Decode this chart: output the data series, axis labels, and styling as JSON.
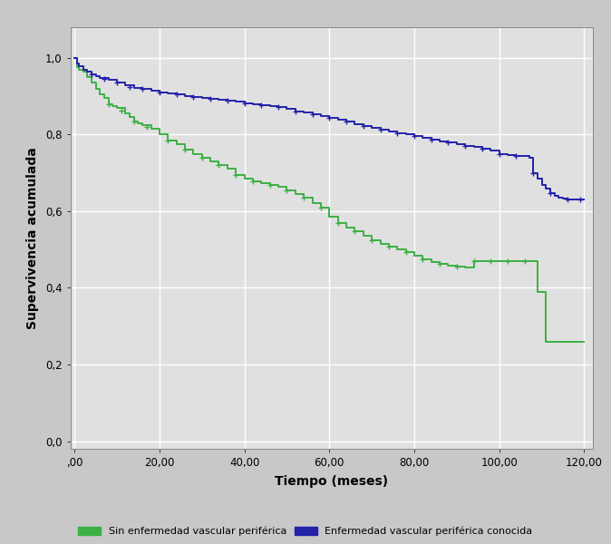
{
  "title": "",
  "xlabel": "Tiempo (meses)",
  "ylabel": "Supervivencia acumulada",
  "xlim": [
    -1,
    122
  ],
  "ylim": [
    -0.02,
    1.08
  ],
  "xticks": [
    0,
    20,
    40,
    60,
    80,
    100,
    120
  ],
  "xtick_labels": [
    ",00",
    "20,00",
    "40,00",
    "60,00",
    "80,00",
    "100,00",
    "120,00"
  ],
  "yticks": [
    0.0,
    0.2,
    0.4,
    0.6,
    0.8,
    1.0
  ],
  "ytick_labels": [
    "0,0",
    "0,2",
    "0,4",
    "0,6",
    "0,8",
    "1,0"
  ],
  "fig_bg_color": "#c8c8c8",
  "plot_bg_color": "#e0e0e0",
  "grid_color": "#ffffff",
  "green_color": "#3cb043",
  "blue_color": "#2222aa",
  "legend_green": "Sin enfermedad vascular periférica",
  "legend_blue": "Enfermedad vascular periférica conocida",
  "green_steps": [
    [
      0.0,
      1.0
    ],
    [
      0.5,
      0.975
    ],
    [
      1.0,
      0.97
    ],
    [
      2.0,
      0.965
    ],
    [
      3.0,
      0.95
    ],
    [
      4.0,
      0.935
    ],
    [
      5.0,
      0.92
    ],
    [
      6.0,
      0.905
    ],
    [
      7.0,
      0.895
    ],
    [
      8.0,
      0.88
    ],
    [
      9.0,
      0.875
    ],
    [
      10.0,
      0.87
    ],
    [
      12.0,
      0.855
    ],
    [
      13.0,
      0.845
    ],
    [
      14.0,
      0.835
    ],
    [
      15.0,
      0.83
    ],
    [
      16.0,
      0.825
    ],
    [
      18.0,
      0.815
    ],
    [
      20.0,
      0.8
    ],
    [
      22.0,
      0.785
    ],
    [
      24.0,
      0.775
    ],
    [
      26.0,
      0.76
    ],
    [
      28.0,
      0.75
    ],
    [
      30.0,
      0.74
    ],
    [
      32.0,
      0.73
    ],
    [
      34.0,
      0.72
    ],
    [
      36.0,
      0.71
    ],
    [
      38.0,
      0.695
    ],
    [
      40.0,
      0.685
    ],
    [
      42.0,
      0.678
    ],
    [
      44.0,
      0.672
    ],
    [
      46.0,
      0.668
    ],
    [
      48.0,
      0.663
    ],
    [
      50.0,
      0.655
    ],
    [
      52.0,
      0.645
    ],
    [
      54.0,
      0.635
    ],
    [
      56.0,
      0.62
    ],
    [
      58.0,
      0.61
    ],
    [
      60.0,
      0.585
    ],
    [
      62.0,
      0.57
    ],
    [
      64.0,
      0.558
    ],
    [
      66.0,
      0.548
    ],
    [
      68.0,
      0.535
    ],
    [
      70.0,
      0.523
    ],
    [
      72.0,
      0.515
    ],
    [
      74.0,
      0.508
    ],
    [
      76.0,
      0.5
    ],
    [
      78.0,
      0.493
    ],
    [
      80.0,
      0.485
    ],
    [
      82.0,
      0.475
    ],
    [
      84.0,
      0.468
    ],
    [
      86.0,
      0.463
    ],
    [
      88.0,
      0.458
    ],
    [
      90.0,
      0.455
    ],
    [
      92.0,
      0.452
    ],
    [
      94.0,
      0.47
    ],
    [
      96.0,
      0.47
    ],
    [
      98.0,
      0.47
    ],
    [
      100.0,
      0.47
    ],
    [
      102.0,
      0.47
    ],
    [
      104.0,
      0.47
    ],
    [
      106.0,
      0.47
    ],
    [
      108.0,
      0.47
    ],
    [
      109.0,
      0.39
    ],
    [
      110.0,
      0.39
    ],
    [
      111.0,
      0.26
    ],
    [
      120.0,
      0.26
    ]
  ],
  "blue_steps": [
    [
      0.0,
      1.0
    ],
    [
      0.5,
      0.985
    ],
    [
      1.0,
      0.978
    ],
    [
      2.0,
      0.97
    ],
    [
      3.0,
      0.963
    ],
    [
      4.0,
      0.957
    ],
    [
      5.0,
      0.952
    ],
    [
      6.0,
      0.948
    ],
    [
      8.0,
      0.942
    ],
    [
      10.0,
      0.936
    ],
    [
      12.0,
      0.928
    ],
    [
      14.0,
      0.922
    ],
    [
      16.0,
      0.918
    ],
    [
      18.0,
      0.914
    ],
    [
      20.0,
      0.91
    ],
    [
      22.0,
      0.907
    ],
    [
      24.0,
      0.904
    ],
    [
      26.0,
      0.901
    ],
    [
      28.0,
      0.899
    ],
    [
      30.0,
      0.896
    ],
    [
      32.0,
      0.893
    ],
    [
      34.0,
      0.891
    ],
    [
      36.0,
      0.888
    ],
    [
      38.0,
      0.885
    ],
    [
      40.0,
      0.882
    ],
    [
      42.0,
      0.88
    ],
    [
      44.0,
      0.877
    ],
    [
      46.0,
      0.874
    ],
    [
      48.0,
      0.871
    ],
    [
      50.0,
      0.866
    ],
    [
      52.0,
      0.861
    ],
    [
      54.0,
      0.857
    ],
    [
      56.0,
      0.853
    ],
    [
      58.0,
      0.848
    ],
    [
      60.0,
      0.843
    ],
    [
      62.0,
      0.838
    ],
    [
      64.0,
      0.833
    ],
    [
      66.0,
      0.828
    ],
    [
      68.0,
      0.823
    ],
    [
      70.0,
      0.818
    ],
    [
      72.0,
      0.813
    ],
    [
      74.0,
      0.808
    ],
    [
      76.0,
      0.804
    ],
    [
      78.0,
      0.8
    ],
    [
      80.0,
      0.796
    ],
    [
      82.0,
      0.791
    ],
    [
      84.0,
      0.787
    ],
    [
      86.0,
      0.783
    ],
    [
      88.0,
      0.779
    ],
    [
      90.0,
      0.775
    ],
    [
      92.0,
      0.771
    ],
    [
      94.0,
      0.767
    ],
    [
      96.0,
      0.763
    ],
    [
      98.0,
      0.758
    ],
    [
      100.0,
      0.75
    ],
    [
      102.0,
      0.747
    ],
    [
      104.0,
      0.745
    ],
    [
      106.0,
      0.743
    ],
    [
      107.0,
      0.74
    ],
    [
      108.0,
      0.7
    ],
    [
      109.0,
      0.685
    ],
    [
      110.0,
      0.668
    ],
    [
      111.0,
      0.658
    ],
    [
      112.0,
      0.648
    ],
    [
      113.0,
      0.64
    ],
    [
      114.0,
      0.635
    ],
    [
      115.0,
      0.632
    ],
    [
      116.0,
      0.63
    ],
    [
      117.0,
      0.63
    ],
    [
      120.0,
      0.63
    ]
  ],
  "green_censors": [
    [
      8,
      0.88
    ],
    [
      11,
      0.863
    ],
    [
      14,
      0.835
    ],
    [
      17,
      0.82
    ],
    [
      22,
      0.785
    ],
    [
      26,
      0.76
    ],
    [
      30,
      0.74
    ],
    [
      34,
      0.72
    ],
    [
      38,
      0.695
    ],
    [
      42,
      0.678
    ],
    [
      46,
      0.668
    ],
    [
      50,
      0.655
    ],
    [
      54,
      0.635
    ],
    [
      58,
      0.61
    ],
    [
      62,
      0.57
    ],
    [
      66,
      0.548
    ],
    [
      70,
      0.523
    ],
    [
      74,
      0.508
    ],
    [
      78,
      0.493
    ],
    [
      82,
      0.475
    ],
    [
      86,
      0.463
    ],
    [
      90,
      0.455
    ],
    [
      94,
      0.47
    ],
    [
      98,
      0.47
    ],
    [
      102,
      0.47
    ],
    [
      106,
      0.47
    ]
  ],
  "blue_censors": [
    [
      4,
      0.957
    ],
    [
      7,
      0.944
    ],
    [
      10,
      0.936
    ],
    [
      13,
      0.925
    ],
    [
      16,
      0.918
    ],
    [
      20,
      0.91
    ],
    [
      24,
      0.904
    ],
    [
      28,
      0.899
    ],
    [
      32,
      0.893
    ],
    [
      36,
      0.888
    ],
    [
      40,
      0.882
    ],
    [
      44,
      0.877
    ],
    [
      48,
      0.871
    ],
    [
      52,
      0.861
    ],
    [
      56,
      0.853
    ],
    [
      60,
      0.843
    ],
    [
      64,
      0.833
    ],
    [
      68,
      0.823
    ],
    [
      72,
      0.813
    ],
    [
      76,
      0.804
    ],
    [
      80,
      0.796
    ],
    [
      84,
      0.787
    ],
    [
      88,
      0.779
    ],
    [
      92,
      0.771
    ],
    [
      96,
      0.763
    ],
    [
      100,
      0.75
    ],
    [
      104,
      0.745
    ],
    [
      108,
      0.7
    ],
    [
      112,
      0.648
    ],
    [
      116,
      0.63
    ],
    [
      119,
      0.63
    ]
  ]
}
